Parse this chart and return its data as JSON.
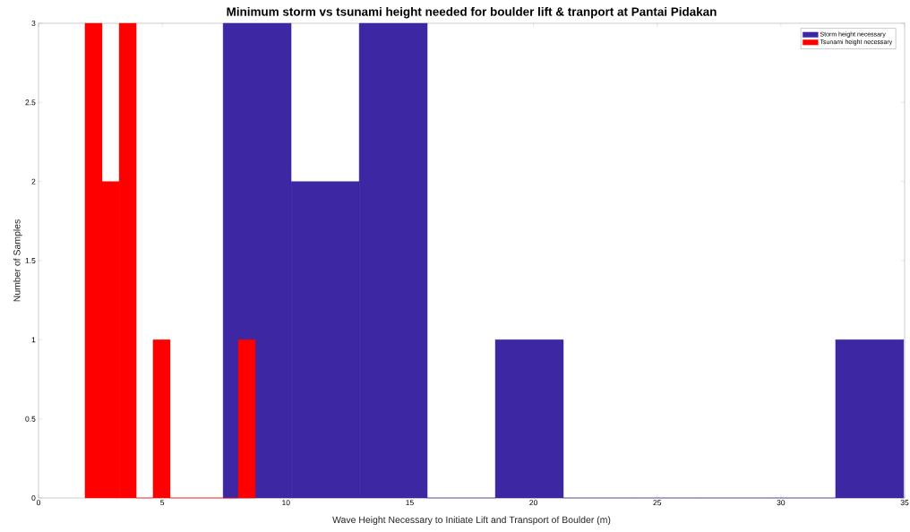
{
  "chart_data": {
    "type": "histogram",
    "title": "Minimum storm vs tsunami height needed for boulder lift & tranport at Pantai Pidakan",
    "xlabel": "Wave Height Necessary to Initiate Lift and Transport of Boulder (m)",
    "ylabel": "Number of Samples",
    "bins": [
      7.46,
      10.21,
      12.96,
      15.71,
      18.46,
      21.21,
      23.96,
      26.71,
      29.46,
      32.21,
      34.96
    ],
    "series": [
      {
        "name": "Storm height necessary",
        "color": "#3d27a3",
        "values": [
          3,
          2,
          3,
          0,
          1,
          0,
          0,
          0,
          0,
          1
        ]
      },
      {
        "name": "Tsunami height necessary",
        "color": "#ff0000",
        "bins": [
          1.88,
          2.57,
          3.26,
          3.95,
          4.63,
          5.32,
          6.01,
          6.7,
          7.39,
          8.07,
          8.76
        ],
        "values": [
          3,
          2,
          3,
          0,
          1,
          0,
          0,
          0,
          0,
          1
        ]
      }
    ],
    "xlim": [
      0,
      35
    ],
    "ylim": [
      0,
      3
    ],
    "xticks": [
      0,
      5,
      10,
      15,
      20,
      25,
      30,
      35
    ],
    "yticks": [
      0,
      0.5,
      1,
      1.5,
      2,
      2.5,
      3
    ],
    "grid": false,
    "legend": "top right"
  }
}
